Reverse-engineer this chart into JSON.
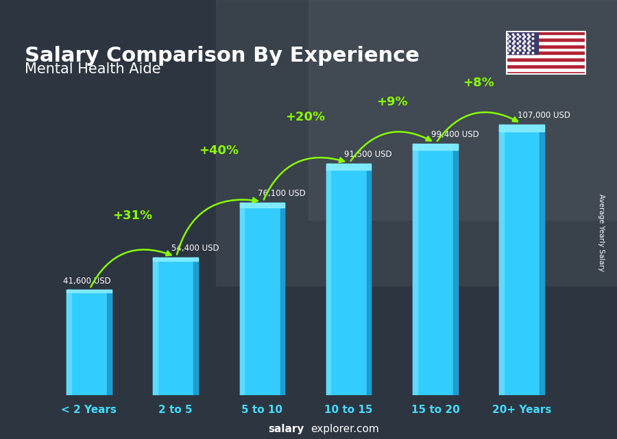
{
  "title": "Salary Comparison By Experience",
  "subtitle": "Mental Health Aide",
  "categories": [
    "< 2 Years",
    "2 to 5",
    "5 to 10",
    "10 to 15",
    "15 to 20",
    "20+ Years"
  ],
  "values": [
    41600,
    54400,
    76100,
    91500,
    99400,
    107000
  ],
  "labels": [
    "41,600 USD",
    "54,400 USD",
    "76,100 USD",
    "91,500 USD",
    "99,400 USD",
    "107,000 USD"
  ],
  "pct_changes": [
    "+31%",
    "+40%",
    "+20%",
    "+9%",
    "+8%"
  ],
  "bar_color_main": "#33ccff",
  "bar_color_light": "#66ddff",
  "bar_color_dark": "#1a99cc",
  "bar_color_top": "#55ddff",
  "bg_color": "#3a3a3a",
  "overlay_color": "#1a2530",
  "title_color": "#ffffff",
  "subtitle_color": "#ffffff",
  "label_color": "#ffffff",
  "pct_color": "#88ff00",
  "axis_label_color": "#44ddff",
  "ylabel": "Average Yearly Salary",
  "footer_bold": "salary",
  "footer_regular": "explorer.com",
  "ylim_max": 125000,
  "bar_width": 0.52
}
